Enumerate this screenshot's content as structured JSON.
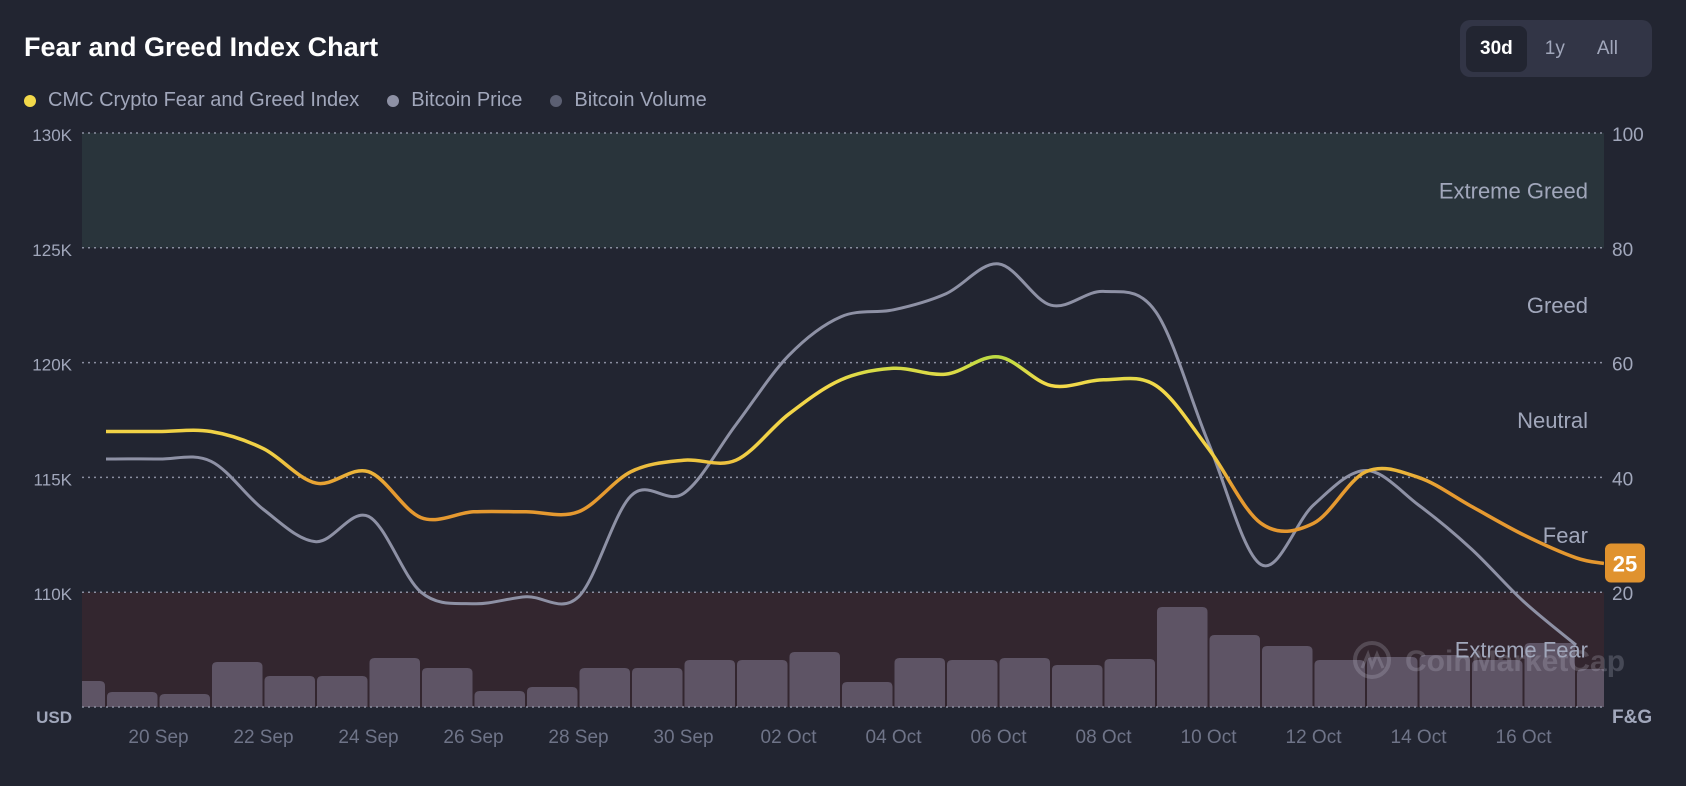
{
  "header": {
    "title": "Fear and Greed Index Chart"
  },
  "range_selector": {
    "options": [
      "30d",
      "1y",
      "All"
    ],
    "selected": "30d"
  },
  "legend": [
    {
      "label": "CMC Crypto Fear and Greed Index",
      "color": "#f3d94a"
    },
    {
      "label": "Bitcoin Price",
      "color": "#8e91a5"
    },
    {
      "label": "Bitcoin Volume",
      "color": "#5b5f72"
    }
  ],
  "watermark": "CoinMarketCap",
  "chart_data": {
    "type": "line",
    "title": "Fear and Greed Index Chart",
    "x": [
      "19 Sep",
      "20 Sep",
      "21 Sep",
      "22 Sep",
      "23 Sep",
      "24 Sep",
      "25 Sep",
      "26 Sep",
      "27 Sep",
      "28 Sep",
      "29 Sep",
      "30 Sep",
      "01 Oct",
      "02 Oct",
      "03 Oct",
      "04 Oct",
      "05 Oct",
      "06 Oct",
      "07 Oct",
      "08 Oct",
      "09 Oct",
      "10 Oct",
      "11 Oct",
      "12 Oct",
      "13 Oct",
      "14 Oct",
      "15 Oct",
      "16 Oct",
      "17 Oct"
    ],
    "x_tick_labels": [
      "20 Sep",
      "22 Sep",
      "24 Sep",
      "26 Sep",
      "28 Sep",
      "30 Sep",
      "02 Oct",
      "04 Oct",
      "06 Oct",
      "08 Oct",
      "10 Oct",
      "12 Oct",
      "14 Oct",
      "16 Oct"
    ],
    "left_axis": {
      "label": "USD",
      "ticks": [
        "130K",
        "125K",
        "120K",
        "115K",
        "110K"
      ],
      "ylim": [
        105000,
        130000
      ]
    },
    "right_axis": {
      "label": "F&G",
      "ticks": [
        "100",
        "80",
        "60",
        "40",
        "20"
      ],
      "ylim": [
        0,
        100
      ]
    },
    "zones": [
      {
        "label": "Extreme Greed",
        "range": [
          80,
          100
        ],
        "color": "#29343b"
      },
      {
        "label": "Greed",
        "range": [
          60,
          80
        ]
      },
      {
        "label": "Neutral",
        "range": [
          40,
          60
        ]
      },
      {
        "label": "Fear",
        "range": [
          20,
          40
        ]
      },
      {
        "label": "Extreme Fear",
        "range": [
          0,
          20
        ],
        "color": "#33262f"
      }
    ],
    "series": [
      {
        "name": "CMC Crypto Fear and Greed Index",
        "axis": "right",
        "values": [
          48,
          48,
          48,
          45,
          39,
          41,
          33,
          34,
          34,
          34,
          41,
          43,
          43,
          51,
          57,
          59,
          58,
          61,
          56,
          57,
          56,
          45,
          32,
          32,
          41,
          40,
          35,
          30,
          26
        ]
      },
      {
        "name": "Bitcoin Price",
        "axis": "left",
        "values": [
          115800,
          115800,
          115700,
          113600,
          112200,
          113300,
          110000,
          109500,
          109800,
          109800,
          114200,
          114300,
          117300,
          120300,
          122000,
          122300,
          123000,
          124300,
          122500,
          123100,
          122200,
          116500,
          111200,
          113800,
          115300,
          113800,
          111900,
          109600,
          107700
        ]
      },
      {
        "name": "Bitcoin Volume",
        "type": "bar",
        "x": [
          "18 Sep",
          "19 Sep",
          "20 Sep",
          "21 Sep",
          "22 Sep",
          "23 Sep",
          "24 Sep",
          "25 Sep",
          "26 Sep",
          "27 Sep",
          "28 Sep",
          "29 Sep",
          "30 Sep",
          "01 Oct",
          "02 Oct",
          "03 Oct",
          "04 Oct",
          "05 Oct",
          "06 Oct",
          "07 Oct",
          "08 Oct",
          "09 Oct",
          "10 Oct",
          "11 Oct",
          "12 Oct",
          "13 Oct",
          "14 Oct",
          "15 Oct",
          "16 Oct",
          "17 Oct"
        ],
        "values": [
          26,
          15,
          13,
          45,
          31,
          31,
          49,
          39,
          16,
          20,
          39,
          39,
          47,
          47,
          55,
          25,
          49,
          47,
          49,
          42,
          48,
          100,
          72,
          61,
          47,
          50,
          52,
          47,
          64,
          38
        ]
      }
    ],
    "current_value": "25",
    "current_value_color": "#e0922e",
    "grid": true
  }
}
